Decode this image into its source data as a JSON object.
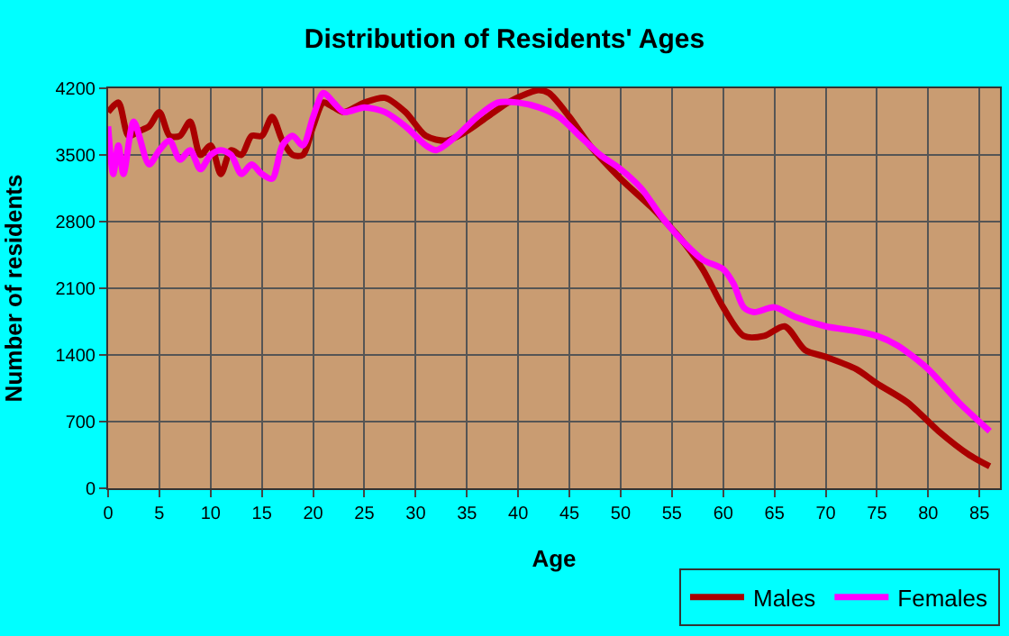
{
  "chart_data": {
    "type": "line",
    "title": "Distribution of Residents' Ages",
    "xlabel": "Age",
    "ylabel": "Number of residents",
    "xlim": [
      0,
      87
    ],
    "xticks": [
      0,
      5,
      10,
      15,
      20,
      25,
      30,
      35,
      40,
      45,
      50,
      55,
      60,
      65,
      70,
      75,
      80,
      85
    ],
    "ylim": [
      0,
      4200
    ],
    "yticks": [
      0,
      700,
      1400,
      2100,
      2800,
      3500,
      4200
    ],
    "grid": true,
    "legend": "bottom right",
    "marker": "none",
    "line_style": "solid",
    "series": [
      {
        "name": "Males",
        "color": "#aa0000",
        "x": [
          0,
          1,
          2,
          3,
          4,
          5,
          6,
          7,
          8,
          9,
          10,
          11,
          12,
          13,
          14,
          15,
          16,
          17,
          18,
          19,
          20,
          21,
          22,
          23,
          25,
          27,
          29,
          31,
          33,
          35,
          37,
          39,
          41,
          42,
          43,
          45,
          47,
          50,
          53,
          56,
          58,
          60,
          62,
          64,
          66,
          68,
          70,
          73,
          75,
          78,
          81,
          84,
          86
        ],
        "values": [
          3950,
          4050,
          3700,
          3750,
          3800,
          3950,
          3700,
          3700,
          3850,
          3500,
          3600,
          3300,
          3550,
          3500,
          3700,
          3700,
          3900,
          3650,
          3500,
          3500,
          3800,
          4050,
          4000,
          3950,
          4050,
          4100,
          3950,
          3700,
          3650,
          3750,
          3900,
          4050,
          4150,
          4180,
          4150,
          3900,
          3600,
          3250,
          2950,
          2600,
          2300,
          1900,
          1600,
          1600,
          1700,
          1450,
          1380,
          1250,
          1100,
          900,
          600,
          350,
          230
        ]
      },
      {
        "name": "Females",
        "color": "#ff00ff",
        "x": [
          0,
          0.5,
          1,
          1.5,
          2.5,
          4,
          5,
          6,
          7,
          8,
          9,
          10,
          11,
          12,
          13,
          14,
          15,
          16,
          17,
          18,
          19,
          20,
          21,
          22,
          23,
          25,
          27,
          29,
          31,
          32,
          34,
          36,
          38,
          40,
          42,
          44,
          46,
          48,
          50,
          52,
          54,
          56,
          58,
          60,
          61,
          62,
          63,
          65,
          67,
          70,
          73,
          75,
          77,
          80,
          83,
          86
        ],
        "values": [
          3800,
          3300,
          3600,
          3300,
          3850,
          3400,
          3550,
          3650,
          3450,
          3550,
          3350,
          3500,
          3550,
          3500,
          3300,
          3400,
          3300,
          3250,
          3600,
          3700,
          3600,
          3900,
          4150,
          4050,
          3950,
          4000,
          3950,
          3800,
          3600,
          3550,
          3700,
          3900,
          4050,
          4050,
          4000,
          3900,
          3700,
          3500,
          3350,
          3150,
          2850,
          2600,
          2400,
          2300,
          2150,
          1900,
          1850,
          1900,
          1800,
          1700,
          1650,
          1600,
          1500,
          1250,
          900,
          600
        ]
      }
    ]
  }
}
